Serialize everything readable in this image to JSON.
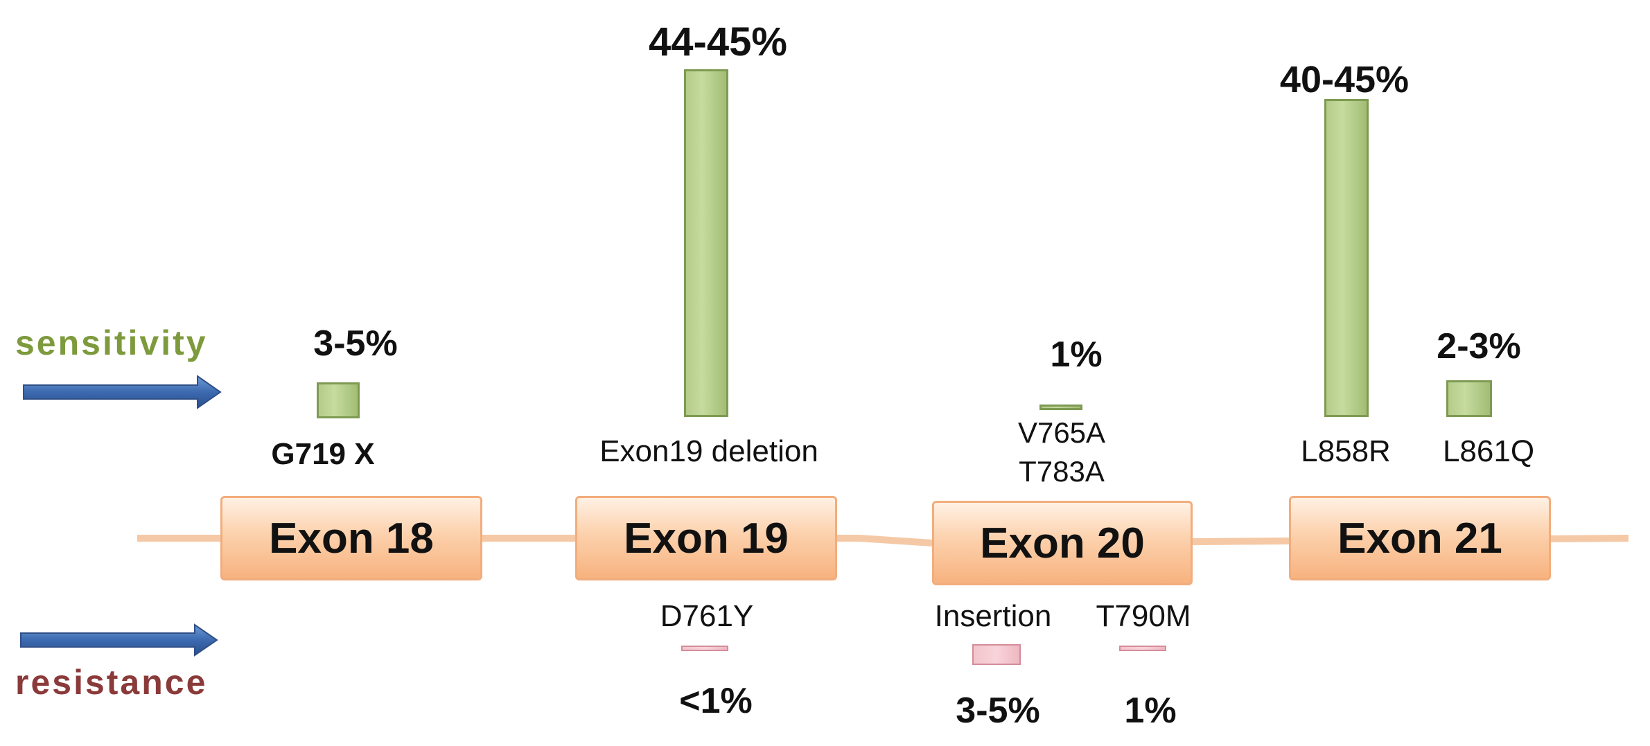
{
  "labels": {
    "sensitivity": "sensitivity",
    "resistance": "resistance"
  },
  "exons": [
    "Exon 18",
    "Exon 19",
    "Exon 20",
    "Exon 21"
  ],
  "sensitivity_mutations": [
    {
      "mutation": "G719 X",
      "frequency": "3-5%"
    },
    {
      "mutation": "Exon19 deletion",
      "frequency": "44-45%"
    },
    {
      "mutation": "V765A",
      "frequency": "1%"
    },
    {
      "mutation": "T783A",
      "frequency": "1%"
    },
    {
      "mutation": "L858R",
      "frequency": "40-45%"
    },
    {
      "mutation": "L861Q",
      "frequency": "2-3%"
    }
  ],
  "resistance_mutations": [
    {
      "mutation": "D761Y",
      "frequency": "<1%"
    },
    {
      "mutation": "Insertion",
      "frequency": "3-5%"
    },
    {
      "mutation": "T790M",
      "frequency": "1%"
    }
  ],
  "colors": {
    "sensitivity": "#7d9a3c",
    "resistance": "#8b3a3a",
    "arrow": "#3c6ab0",
    "sensitivity_bar": "#b4cc8a",
    "resistance_bar": "#f3c4cc",
    "exon_fill": "#fcd1ac",
    "backbone": "#f5c9a6"
  }
}
